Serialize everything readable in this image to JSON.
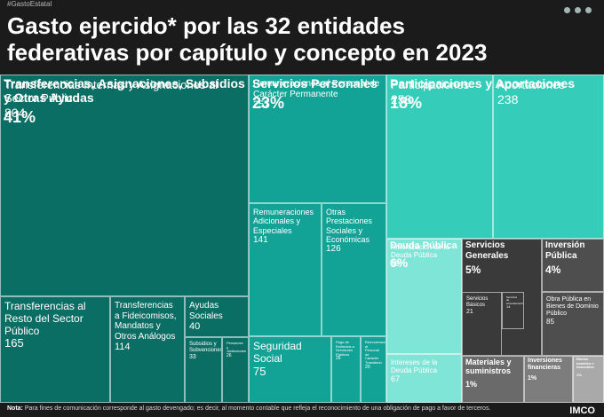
{
  "header": {
    "hashtag": "#GastoEstatal",
    "title_line1": "Gasto ejercido* por las 32 entidades",
    "title_line2": "federativas por capítulo y concepto en 2023"
  },
  "chart_data": {
    "type": "treemap",
    "title": "Gasto ejercido* por las 32 entidades federativas por capítulo y concepto en 2023",
    "chapters": [
      {
        "name": "Transferencias, Asignaciones, Subsidios y Otras Ayudas",
        "share": "41%",
        "color": "#0b6e64",
        "concepts": [
          {
            "name": "Transferencias Internas y Asignaciones al Sector Público",
            "value": 804
          },
          {
            "name": "Transferencias al Resto del Sector Público",
            "value": 165
          },
          {
            "name": "Transferencias a Fideicomisos, Mandatos y Otros Análogos",
            "value": 114
          },
          {
            "name": "Ayudas Sociales",
            "value": 40
          },
          {
            "name": "Subsidios y Subvenciones",
            "value": 33
          },
          {
            "name": "Pensiones y Jubilaciones",
            "value": 26
          }
        ]
      },
      {
        "name": "Servicios Personales",
        "share": "23%",
        "color": "#13a396",
        "concepts": [
          {
            "name": "Remuneraciones al Personal de Carácter Permanente",
            "value": 257
          },
          {
            "name": "Remuneraciones Adicionales y Especiales",
            "value": 141
          },
          {
            "name": "Otras Prestaciones Sociales y Económicas",
            "value": 126
          },
          {
            "name": "Seguridad Social",
            "value": 75
          },
          {
            "name": "Pago de Estímulos a Servidores Públicos",
            "value": 26
          },
          {
            "name": "Remuneraciones al Personal de Carácter Transitorio",
            "value": 20
          }
        ]
      },
      {
        "name": "Participaciones y Aportaciones",
        "share": "18%",
        "color": "#35cdb9",
        "concepts": [
          {
            "name": "Participaciones",
            "value": 258
          },
          {
            "name": "Aportaciones",
            "value": 238
          }
        ]
      },
      {
        "name": "Deuda Pública",
        "share": "6%",
        "color": "#7fe5d6",
        "concepts": [
          {
            "name": "Amortización de la Deuda Pública",
            "value": 99
          },
          {
            "name": "Intereses de la Deuda Pública",
            "value": 67
          }
        ]
      },
      {
        "name": "Servicios Generales",
        "share": "5%",
        "color": "#3a3a3a",
        "concepts": [
          {
            "name": "Servicios Básicos",
            "value": 21
          },
          {
            "name": "Servicios de Arrendamiento",
            "value": 14
          }
        ]
      },
      {
        "name": "Inversión Pública",
        "share": "4%",
        "color": "#4e4e4e",
        "concepts": [
          {
            "name": "Obra Pública en Bienes de Dominio Público",
            "value": 85
          }
        ]
      },
      {
        "name": "Materiales y suministros",
        "share": "1%",
        "color": "#6a6a6a",
        "concepts": []
      },
      {
        "name": "Inversiones financieras",
        "share": "1%",
        "color": "#7d7d7d",
        "concepts": []
      },
      {
        "name": "Bienes muebles e inmuebles",
        "share": "1%",
        "color": "#a9a9a9",
        "concepts": []
      }
    ]
  },
  "footer": {
    "note_label": "Nota:",
    "note_text": "Para fines de comunicación corresponde al gasto devengado; es decir, al momento contable que refleja el reconocimiento de una obligación de pago a favor de terceros.",
    "logo": "IMCO"
  }
}
